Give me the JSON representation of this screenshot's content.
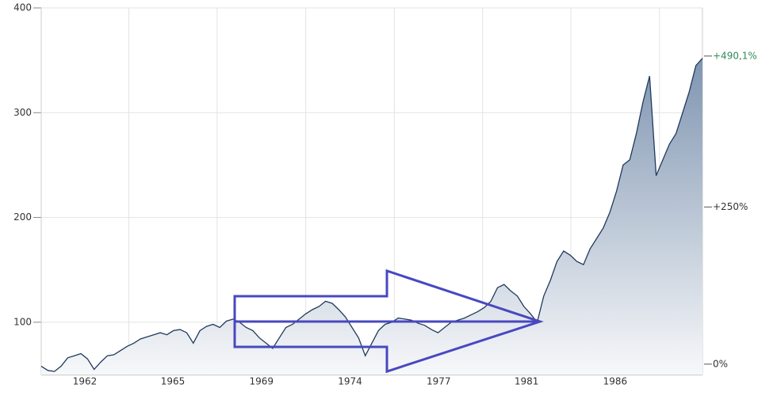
{
  "chart_data": {
    "type": "area",
    "x": [
      0,
      1,
      2,
      3,
      4,
      5,
      6,
      7,
      8,
      9,
      10,
      11,
      12,
      13,
      14,
      15,
      16,
      17,
      18,
      19,
      20,
      21,
      22,
      23,
      24,
      25,
      26,
      27,
      28,
      29,
      30,
      31,
      32,
      33,
      34,
      35,
      36,
      37,
      38,
      39,
      40,
      41,
      42,
      43,
      44,
      45,
      46,
      47,
      48,
      49,
      50,
      51,
      52,
      53,
      54,
      55,
      56,
      57,
      58,
      59,
      60,
      61,
      62,
      63,
      64,
      65,
      66,
      67,
      68,
      69,
      70,
      71,
      72,
      73,
      74,
      75,
      76,
      77,
      78,
      79,
      80,
      81,
      82,
      83,
      84,
      85,
      86,
      87,
      88,
      89,
      90,
      91,
      92,
      93,
      94,
      95,
      96,
      97,
      98,
      99,
      100
    ],
    "values": [
      58,
      54,
      53,
      58,
      66,
      68,
      70,
      65,
      55,
      62,
      68,
      69,
      73,
      77,
      80,
      84,
      86,
      88,
      90,
      88,
      92,
      93,
      90,
      80,
      92,
      96,
      98,
      95,
      101,
      103,
      100,
      95,
      92,
      85,
      80,
      75,
      85,
      95,
      98,
      103,
      108,
      112,
      115,
      120,
      118,
      112,
      105,
      95,
      85,
      68,
      80,
      92,
      98,
      100,
      104,
      103,
      102,
      99,
      97,
      93,
      90,
      95,
      100,
      102,
      104,
      107,
      110,
      114,
      120,
      133,
      136,
      130,
      125,
      115,
      108,
      100,
      125,
      140,
      158,
      168,
      164,
      158,
      155,
      170,
      180,
      190,
      205,
      225,
      250,
      255,
      280,
      310,
      335,
      240,
      255,
      270,
      280,
      300,
      320,
      345,
      352
    ],
    "color": "#1f3a5c",
    "xlim": [
      0,
      100
    ],
    "xticks": [
      {
        "value": 6.6,
        "label": "1962"
      },
      {
        "value": 19.9,
        "label": "1965"
      },
      {
        "value": 33.3,
        "label": "1969"
      },
      {
        "value": 46.7,
        "label": "1974"
      },
      {
        "value": 60.1,
        "label": "1977"
      },
      {
        "value": 73.4,
        "label": "1981"
      },
      {
        "value": 86.8,
        "label": "1986"
      }
    ],
    "ylim": [
      50,
      400
    ],
    "yticks": [
      100,
      200,
      300,
      400
    ],
    "y2lim": [
      -16.67,
      566.67
    ],
    "y2ticks": [
      {
        "value": 0,
        "label": "0%"
      },
      {
        "value": 250,
        "label": "+250%"
      },
      {
        "value": 490.1,
        "label": "+490,1%"
      }
    ],
    "grid": true
  }
}
